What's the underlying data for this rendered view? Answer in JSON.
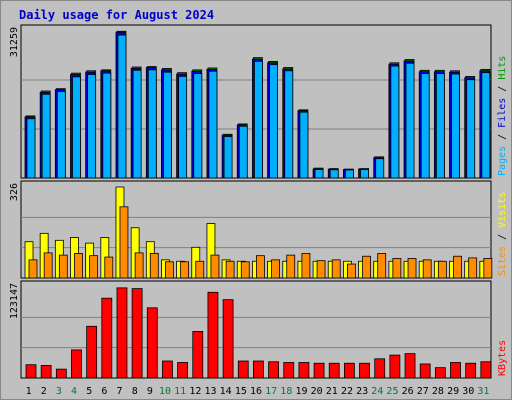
{
  "page_title": "Daily usage for August 2024",
  "colors": {
    "background": "#c0c0c0",
    "panel": "#c0c0c0",
    "hits": "#009800",
    "files": "#0000d8",
    "pages": "#00b0ff",
    "visits": "#ffff00",
    "sites": "#ff8c00",
    "kbytes": "#ff0000",
    "title": "#0000cc",
    "weekend_day": "#007a39",
    "weekday": "#000000"
  },
  "chart_data": [
    {
      "type": "bar",
      "panel": "hits-files-pages",
      "max_label": "31259",
      "legend": [
        "Pages",
        "/",
        "Files",
        "/",
        "Hits"
      ],
      "ylim": [
        0,
        31259
      ],
      "x": [
        1,
        2,
        3,
        4,
        5,
        6,
        7,
        8,
        9,
        10,
        11,
        12,
        13,
        14,
        15,
        16,
        17,
        18,
        19,
        20,
        21,
        22,
        23,
        24,
        25,
        26,
        27,
        28,
        29,
        30,
        31
      ],
      "series": [
        {
          "name": "Hits",
          "values": [
            13200,
            18500,
            19000,
            22300,
            22800,
            23000,
            31200,
            23600,
            23700,
            23300,
            22400,
            23000,
            23400,
            9300,
            11500,
            25600,
            24800,
            23500,
            14500,
            2100,
            2000,
            1900,
            2000,
            4500,
            24500,
            25200,
            22900,
            22900,
            22800,
            21600,
            23100
          ]
        },
        {
          "name": "Files",
          "values": [
            13000,
            18200,
            18800,
            22000,
            22500,
            22800,
            31000,
            23300,
            23500,
            23000,
            22100,
            22700,
            23100,
            9100,
            11300,
            25300,
            24500,
            23200,
            14300,
            1900,
            1850,
            1800,
            1900,
            4300,
            24200,
            24900,
            22600,
            22600,
            22500,
            21300,
            22800
          ]
        },
        {
          "name": "Pages",
          "values": [
            12600,
            17800,
            18400,
            21500,
            22000,
            22300,
            30400,
            22900,
            23000,
            22500,
            21600,
            22200,
            22700,
            8800,
            11000,
            24800,
            24100,
            22800,
            14000,
            1800,
            1750,
            1700,
            1800,
            4100,
            23800,
            24400,
            22200,
            22200,
            22100,
            20900,
            22400
          ]
        }
      ]
    },
    {
      "type": "bar",
      "panel": "visits-sites",
      "max_label": "326",
      "legend": [
        "Sites",
        "/",
        "Visits"
      ],
      "ylim": [
        0,
        326
      ],
      "x": [
        1,
        2,
        3,
        4,
        5,
        6,
        7,
        8,
        9,
        10,
        11,
        12,
        13,
        14,
        15,
        16,
        17,
        18,
        19,
        20,
        21,
        22,
        23,
        24,
        25,
        26,
        27,
        28,
        29,
        30,
        31
      ],
      "series": [
        {
          "name": "Visits",
          "values": [
            130,
            160,
            135,
            145,
            125,
            145,
            326,
            180,
            130,
            65,
            60,
            110,
            195,
            65,
            60,
            60,
            60,
            60,
            60,
            60,
            60,
            60,
            60,
            60,
            60,
            60,
            60,
            60,
            60,
            60,
            60
          ]
        },
        {
          "name": "Sites",
          "values": [
            65,
            90,
            82,
            88,
            80,
            75,
            255,
            90,
            88,
            58,
            58,
            60,
            82,
            60,
            58,
            80,
            65,
            82,
            88,
            62,
            65,
            50,
            78,
            88,
            70,
            70,
            65,
            60,
            78,
            72,
            70
          ]
        }
      ]
    },
    {
      "type": "bar",
      "panel": "kbytes",
      "max_label": "123147",
      "legend": [
        "KBytes"
      ],
      "ylim": [
        0,
        123147
      ],
      "x": [
        1,
        2,
        3,
        4,
        5,
        6,
        7,
        8,
        9,
        10,
        11,
        12,
        13,
        14,
        15,
        16,
        17,
        18,
        19,
        20,
        21,
        22,
        23,
        24,
        25,
        26,
        27,
        28,
        29,
        30,
        31
      ],
      "series": [
        {
          "name": "KBytes",
          "values": [
            18000,
            17000,
            12000,
            38000,
            70000,
            108000,
            122000,
            121000,
            95000,
            23000,
            21000,
            63000,
            116000,
            106000,
            23000,
            23000,
            22000,
            21000,
            21000,
            20000,
            20000,
            20000,
            20000,
            26000,
            31000,
            33000,
            19000,
            14000,
            21000,
            20000,
            22000
          ]
        }
      ]
    }
  ],
  "day_labels": [
    "1",
    "2",
    "3",
    "4",
    "5",
    "6",
    "7",
    "8",
    "9",
    "10",
    "11",
    "12",
    "13",
    "14",
    "15",
    "16",
    "17",
    "18",
    "19",
    "20",
    "21",
    "22",
    "23",
    "24",
    "25",
    "26",
    "27",
    "28",
    "29",
    "30",
    "31"
  ],
  "weekend_days": [
    3,
    4,
    10,
    11,
    17,
    18,
    24,
    25,
    31
  ]
}
